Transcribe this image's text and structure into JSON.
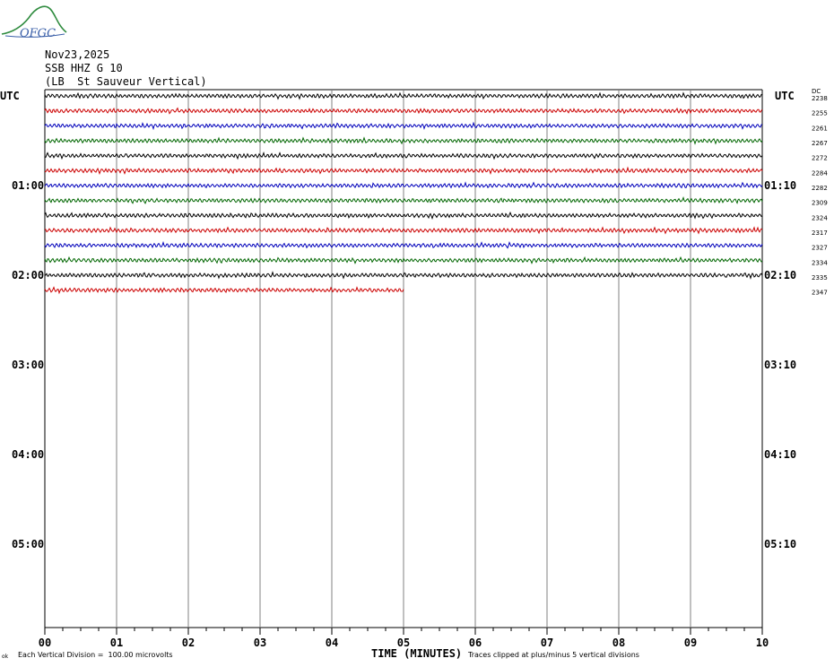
{
  "header": {
    "date": "Nov23,2025",
    "station": "SSB HHZ G 10",
    "location": "(LB  St Sauveur Vertical)",
    "logo_text": "OFGC"
  },
  "labels": {
    "utc_left": "UTC",
    "utc_right": "UTC",
    "dc": "DC"
  },
  "footer": {
    "scale_note": "Each Vertical Division =  100.00 microvolts",
    "xlabel": "TIME (MINUTES)",
    "clip_note": "Traces clipped at plus/minus 5 vertical divisions",
    "corner_mark": "ok"
  },
  "colors": {
    "trace_cycle": [
      "#000000",
      "#cc0000",
      "#0000bb",
      "#006600"
    ],
    "grid": "#808080",
    "logo_green": "#2e8b3e",
    "logo_blue": "#3a5fa8"
  },
  "chart_data": {
    "type": "line",
    "title": "SSB HHZ G 10",
    "xlabel": "TIME (MINUTES)",
    "x_ticks": [
      "00",
      "01",
      "02",
      "03",
      "04",
      "05",
      "06",
      "07",
      "08",
      "09",
      "10"
    ],
    "xlim": [
      0,
      10
    ],
    "rows_per_hour": 6,
    "left_time_labels": [
      {
        "row": 0,
        "text": "UTC"
      },
      {
        "row": 6,
        "text": "01:00"
      },
      {
        "row": 12,
        "text": "02:00"
      },
      {
        "row": 18,
        "text": "03:00"
      },
      {
        "row": 24,
        "text": "04:00"
      },
      {
        "row": 30,
        "text": "05:00"
      }
    ],
    "right_time_labels": [
      {
        "row": 0,
        "text": "UTC"
      },
      {
        "row": 6,
        "text": "01:10"
      },
      {
        "row": 12,
        "text": "02:10"
      },
      {
        "row": 18,
        "text": "03:10"
      },
      {
        "row": 24,
        "text": "04:10"
      },
      {
        "row": 30,
        "text": "05:10"
      }
    ],
    "total_rows": 36,
    "traces": [
      {
        "row": 0,
        "dc": "2238",
        "end_minute": 10
      },
      {
        "row": 1,
        "dc": "2255",
        "end_minute": 10
      },
      {
        "row": 2,
        "dc": "2261",
        "end_minute": 10
      },
      {
        "row": 3,
        "dc": "2267",
        "end_minute": 10
      },
      {
        "row": 4,
        "dc": "2272",
        "end_minute": 10
      },
      {
        "row": 5,
        "dc": "2284",
        "end_minute": 10
      },
      {
        "row": 6,
        "dc": "2282",
        "end_minute": 10
      },
      {
        "row": 7,
        "dc": "2309",
        "end_minute": 10
      },
      {
        "row": 8,
        "dc": "2324",
        "end_minute": 10
      },
      {
        "row": 9,
        "dc": "2317",
        "end_minute": 10
      },
      {
        "row": 10,
        "dc": "2327",
        "end_minute": 10
      },
      {
        "row": 11,
        "dc": "2334",
        "end_minute": 10
      },
      {
        "row": 12,
        "dc": "2335",
        "end_minute": 10
      },
      {
        "row": 13,
        "dc": "2347",
        "end_minute": 5
      }
    ]
  }
}
